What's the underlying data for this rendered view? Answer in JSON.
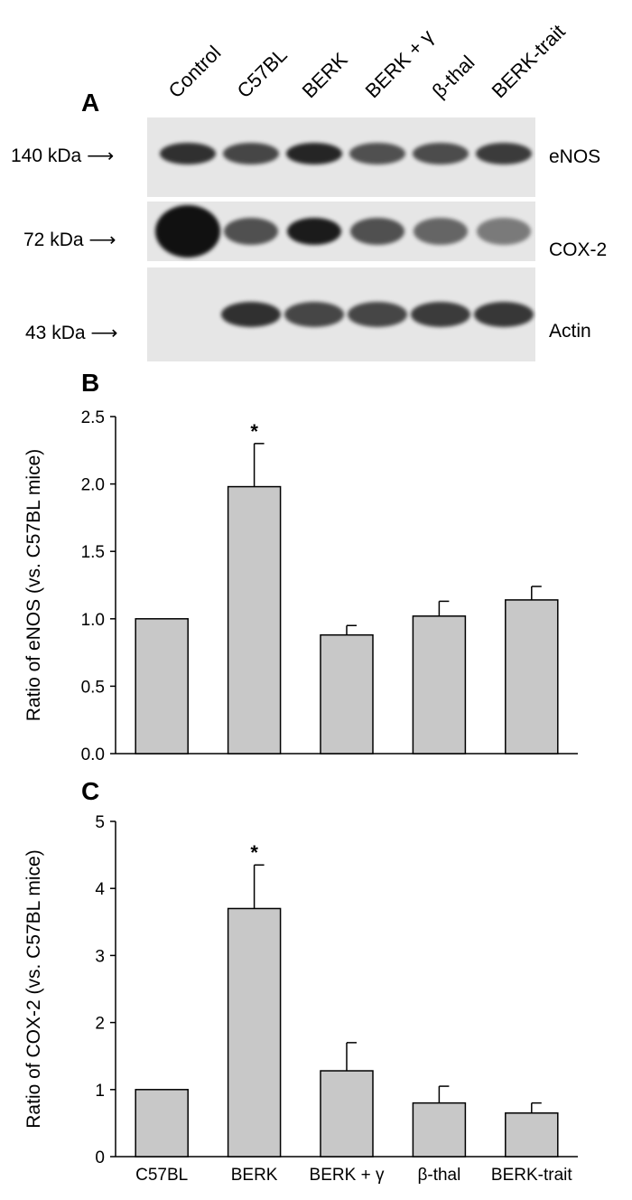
{
  "panels": {
    "a": "A",
    "b": "B",
    "c": "C"
  },
  "blot": {
    "lanes": [
      "Control",
      "C57BL",
      "BERK",
      "BERK + γ",
      "β-thal",
      "BERK-trait"
    ],
    "rows": [
      {
        "kda": "140 kDa",
        "protein": "eNOS",
        "intensity": [
          0.85,
          0.75,
          0.9,
          0.7,
          0.72,
          0.8
        ]
      },
      {
        "kda": "72 kDa",
        "protein": "COX-2",
        "intensity": [
          1.0,
          0.7,
          0.95,
          0.7,
          0.6,
          0.5
        ]
      },
      {
        "kda": "43 kDa",
        "protein": "Actin",
        "intensity": [
          0.0,
          0.85,
          0.75,
          0.75,
          0.8,
          0.82
        ]
      }
    ]
  },
  "chart_data": [
    {
      "type": "bar",
      "panel": "B",
      "categories": [
        "C57BL",
        "BERK",
        "BERK + γ",
        "β-thal",
        "BERK-trait"
      ],
      "values": [
        1.0,
        1.98,
        0.88,
        1.02,
        1.14
      ],
      "errors": [
        0,
        0.32,
        0.07,
        0.11,
        0.1
      ],
      "significant": [
        false,
        true,
        false,
        false,
        false
      ],
      "ylabel": "Ratio of eNOS (vs. C57BL mice)",
      "ylim": [
        0,
        2.5
      ],
      "yticks": [
        "0.0",
        "0.5",
        "1.0",
        "1.5",
        "2.0",
        "2.5"
      ],
      "xlabel": ""
    },
    {
      "type": "bar",
      "panel": "C",
      "categories": [
        "C57BL",
        "BERK",
        "BERK + γ",
        "β-thal",
        "BERK-trait"
      ],
      "values": [
        1.0,
        3.7,
        1.28,
        0.8,
        0.65
      ],
      "errors": [
        0,
        0.65,
        0.42,
        0.25,
        0.15
      ],
      "significant": [
        false,
        true,
        false,
        false,
        false
      ],
      "ylabel": "Ratio of COX-2 (vs. C57BL mice)",
      "ylim": [
        0,
        5
      ],
      "yticks": [
        "0",
        "1",
        "2",
        "3",
        "4",
        "5"
      ],
      "xlabel": ""
    }
  ],
  "marker": "*",
  "colors": {
    "bar": "#c8c8c8",
    "band": "#111111",
    "blot_bg": "#e6e6e6"
  }
}
